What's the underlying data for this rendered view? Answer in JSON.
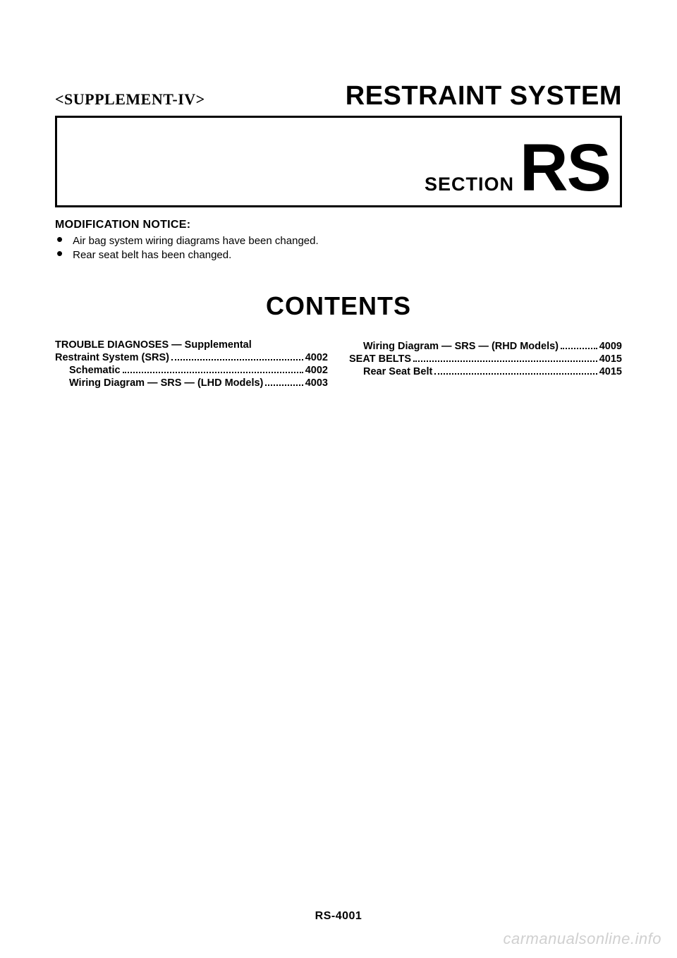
{
  "header": {
    "supplement": "<SUPPLEMENT-IV>",
    "main_title": "RESTRAINT SYSTEM",
    "section_word": "SECTION",
    "section_code": "RS"
  },
  "modification": {
    "heading": "MODIFICATION NOTICE:",
    "items": [
      "Air bag system wiring diagrams have been changed.",
      "Rear seat belt has been changed."
    ]
  },
  "contents_title": "CONTENTS",
  "toc_left": [
    {
      "text": "TROUBLE DIAGNOSES — Supplemental",
      "page": "",
      "indent": 0
    },
    {
      "text": "Restraint System (SRS)",
      "page": "4002",
      "indent": 0
    },
    {
      "text": "Schematic",
      "page": "4002",
      "indent": 1
    },
    {
      "text": "Wiring Diagram — SRS — (LHD Models)",
      "page": "4003",
      "indent": 1
    }
  ],
  "toc_right": [
    {
      "text": "Wiring Diagram — SRS — (RHD Models)",
      "page": "4009",
      "indent": 1
    },
    {
      "text": "SEAT BELTS",
      "page": "4015",
      "indent": 0
    },
    {
      "text": "Rear Seat Belt",
      "page": "4015",
      "indent": 1
    }
  ],
  "page_number": "RS-4001",
  "watermark": "carmanualsonline.info"
}
